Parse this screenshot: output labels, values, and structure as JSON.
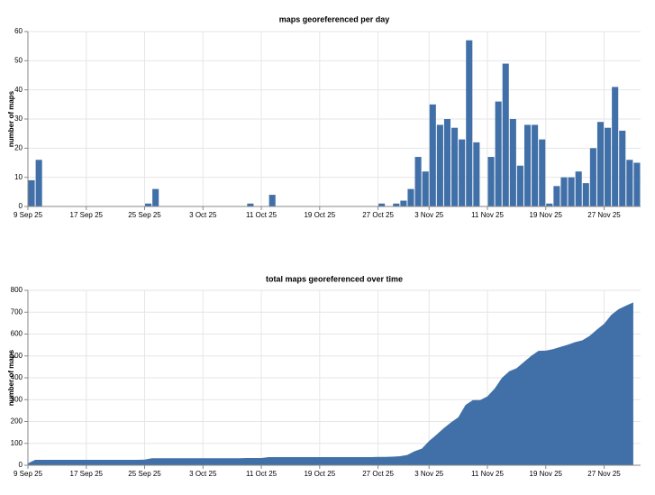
{
  "chart_data": [
    {
      "type": "bar",
      "title": "maps georeferenced per day",
      "y_label": "number of maps",
      "color": "#4170a8",
      "grid": true,
      "x": [
        "2025-09-09",
        "2025-09-10",
        "2025-09-11",
        "2025-09-12",
        "2025-09-13",
        "2025-09-14",
        "2025-09-15",
        "2025-09-16",
        "2025-09-17",
        "2025-09-18",
        "2025-09-19",
        "2025-09-20",
        "2025-09-21",
        "2025-09-22",
        "2025-09-23",
        "2025-09-24",
        "2025-09-25",
        "2025-09-26",
        "2025-09-27",
        "2025-09-28",
        "2025-09-29",
        "2025-09-30",
        "2025-10-01",
        "2025-10-02",
        "2025-10-03",
        "2025-10-04",
        "2025-10-05",
        "2025-10-06",
        "2025-10-07",
        "2025-10-08",
        "2025-10-09",
        "2025-10-10",
        "2025-10-11",
        "2025-10-12",
        "2025-10-13",
        "2025-10-14",
        "2025-10-15",
        "2025-10-16",
        "2025-10-17",
        "2025-10-18",
        "2025-10-19",
        "2025-10-20",
        "2025-10-21",
        "2025-10-22",
        "2025-10-23",
        "2025-10-24",
        "2025-10-25",
        "2025-10-26",
        "2025-10-27",
        "2025-10-28",
        "2025-10-29",
        "2025-10-30",
        "2025-10-31",
        "2025-11-01",
        "2025-11-02",
        "2025-11-03",
        "2025-11-04",
        "2025-11-05",
        "2025-11-06",
        "2025-11-07",
        "2025-11-08",
        "2025-11-09",
        "2025-11-10",
        "2025-11-11",
        "2025-11-12",
        "2025-11-13",
        "2025-11-14",
        "2025-11-15",
        "2025-11-16",
        "2025-11-17",
        "2025-11-18",
        "2025-11-19",
        "2025-11-20",
        "2025-11-21",
        "2025-11-22",
        "2025-11-23",
        "2025-11-24",
        "2025-11-25",
        "2025-11-26",
        "2025-11-27",
        "2025-11-28",
        "2025-11-29",
        "2025-11-30",
        "2025-12-01"
      ],
      "values": [
        9,
        16,
        0,
        0,
        0,
        0,
        0,
        0,
        0,
        0,
        0,
        0,
        0,
        0,
        0,
        0,
        1,
        6,
        0,
        0,
        0,
        0,
        0,
        0,
        0,
        0,
        0,
        0,
        0,
        0,
        1,
        0,
        0,
        4,
        0,
        0,
        0,
        0,
        0,
        0,
        0,
        0,
        0,
        0,
        0,
        0,
        0,
        0,
        1,
        0,
        1,
        2,
        6,
        17,
        12,
        35,
        28,
        30,
        27,
        23,
        57,
        22,
        0,
        17,
        36,
        49,
        30,
        14,
        28,
        28,
        23,
        1,
        7,
        10,
        10,
        12,
        8,
        20,
        29,
        27,
        41,
        26,
        16,
        15
      ],
      "xlim": [
        "2025-09-09",
        "2025-12-02"
      ],
      "xticks": [
        {
          "value": "2025-09-09",
          "label": "9 Sep 25"
        },
        {
          "value": "2025-09-17",
          "label": "17 Sep 25"
        },
        {
          "value": "2025-09-25",
          "label": "25 Sep 25"
        },
        {
          "value": "2025-10-03",
          "label": "3 Oct 25"
        },
        {
          "value": "2025-10-11",
          "label": "11 Oct 25"
        },
        {
          "value": "2025-10-19",
          "label": "19 Oct 25"
        },
        {
          "value": "2025-10-27",
          "label": "27 Oct 25"
        },
        {
          "value": "2025-11-03",
          "label": "3 Nov 25"
        },
        {
          "value": "2025-11-11",
          "label": "11 Nov 25"
        },
        {
          "value": "2025-11-19",
          "label": "19 Nov 25"
        },
        {
          "value": "2025-11-27",
          "label": "27 Nov 25"
        }
      ],
      "ylim": [
        0,
        60
      ],
      "yticks": [
        0,
        10,
        20,
        30,
        40,
        50,
        60
      ]
    },
    {
      "type": "area",
      "title": "total maps georeferenced over time",
      "y_label": "number of maps",
      "color": "#4170a8",
      "grid": true,
      "x": [
        "2025-09-09",
        "2025-09-10",
        "2025-09-11",
        "2025-09-12",
        "2025-09-13",
        "2025-09-14",
        "2025-09-15",
        "2025-09-16",
        "2025-09-17",
        "2025-09-18",
        "2025-09-19",
        "2025-09-20",
        "2025-09-21",
        "2025-09-22",
        "2025-09-23",
        "2025-09-24",
        "2025-09-25",
        "2025-09-26",
        "2025-09-27",
        "2025-09-28",
        "2025-09-29",
        "2025-09-30",
        "2025-10-01",
        "2025-10-02",
        "2025-10-03",
        "2025-10-04",
        "2025-10-05",
        "2025-10-06",
        "2025-10-07",
        "2025-10-08",
        "2025-10-09",
        "2025-10-10",
        "2025-10-11",
        "2025-10-12",
        "2025-10-13",
        "2025-10-14",
        "2025-10-15",
        "2025-10-16",
        "2025-10-17",
        "2025-10-18",
        "2025-10-19",
        "2025-10-20",
        "2025-10-21",
        "2025-10-22",
        "2025-10-23",
        "2025-10-24",
        "2025-10-25",
        "2025-10-26",
        "2025-10-27",
        "2025-10-28",
        "2025-10-29",
        "2025-10-30",
        "2025-10-31",
        "2025-11-01",
        "2025-11-02",
        "2025-11-03",
        "2025-11-04",
        "2025-11-05",
        "2025-11-06",
        "2025-11-07",
        "2025-11-08",
        "2025-11-09",
        "2025-11-10",
        "2025-11-11",
        "2025-11-12",
        "2025-11-13",
        "2025-11-14",
        "2025-11-15",
        "2025-11-16",
        "2025-11-17",
        "2025-11-18",
        "2025-11-19",
        "2025-11-20",
        "2025-11-21",
        "2025-11-22",
        "2025-11-23",
        "2025-11-24",
        "2025-11-25",
        "2025-11-26",
        "2025-11-27",
        "2025-11-28",
        "2025-11-29",
        "2025-11-30",
        "2025-12-01"
      ],
      "values": [
        9,
        25,
        25,
        25,
        25,
        25,
        25,
        25,
        25,
        25,
        25,
        25,
        25,
        25,
        25,
        25,
        26,
        32,
        32,
        32,
        32,
        32,
        32,
        32,
        32,
        32,
        32,
        32,
        32,
        32,
        33,
        33,
        33,
        37,
        37,
        37,
        37,
        37,
        37,
        37,
        37,
        37,
        37,
        37,
        37,
        37,
        37,
        37,
        38,
        38,
        39,
        41,
        47,
        64,
        76,
        111,
        139,
        169,
        196,
        219,
        276,
        298,
        298,
        315,
        351,
        400,
        430,
        444,
        472,
        500,
        523,
        524,
        531,
        541,
        551,
        563,
        571,
        591,
        620,
        647,
        688,
        714,
        730,
        745
      ],
      "xlim": [
        "2025-09-09",
        "2025-12-02"
      ],
      "xticks": [
        {
          "value": "2025-09-09",
          "label": "9 Sep 25"
        },
        {
          "value": "2025-09-17",
          "label": "17 Sep 25"
        },
        {
          "value": "2025-09-25",
          "label": "25 Sep 25"
        },
        {
          "value": "2025-10-03",
          "label": "3 Oct 25"
        },
        {
          "value": "2025-10-11",
          "label": "11 Oct 25"
        },
        {
          "value": "2025-10-19",
          "label": "19 Oct 25"
        },
        {
          "value": "2025-10-27",
          "label": "27 Oct 25"
        },
        {
          "value": "2025-11-03",
          "label": "3 Nov 25"
        },
        {
          "value": "2025-11-11",
          "label": "11 Nov 25"
        },
        {
          "value": "2025-11-19",
          "label": "19 Nov 25"
        },
        {
          "value": "2025-11-27",
          "label": "27 Nov 25"
        }
      ],
      "ylim": [
        0,
        800
      ],
      "yticks": [
        0,
        100,
        200,
        300,
        400,
        500,
        600,
        700,
        800
      ]
    }
  ]
}
